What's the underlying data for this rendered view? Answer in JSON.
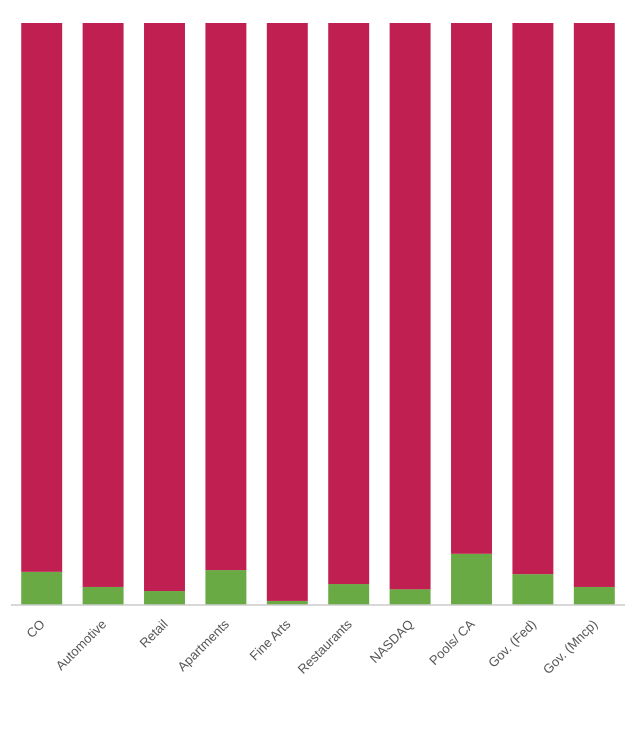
{
  "chart_data": {
    "type": "stacked_bar_100",
    "categories": [
      "CO",
      "Automotive",
      "Retail",
      "Apartments",
      "Fine Arts",
      "Restaurants",
      "NASDAQ",
      "Pools/ CA",
      "Gov. (Fed)",
      "Gov. (Mncp)"
    ],
    "series": [
      {
        "color": "#6aaa44",
        "values": [
          5.7,
          3.1,
          2.4,
          6.0,
          0.7,
          3.6,
          2.7,
          8.8,
          5.3,
          3.1
        ]
      },
      {
        "color": "#c01f52",
        "values": [
          94.3,
          96.9,
          97.6,
          94.0,
          99.3,
          96.4,
          97.3,
          91.2,
          94.7,
          96.9
        ]
      }
    ],
    "ylim": [
      0,
      100
    ]
  }
}
